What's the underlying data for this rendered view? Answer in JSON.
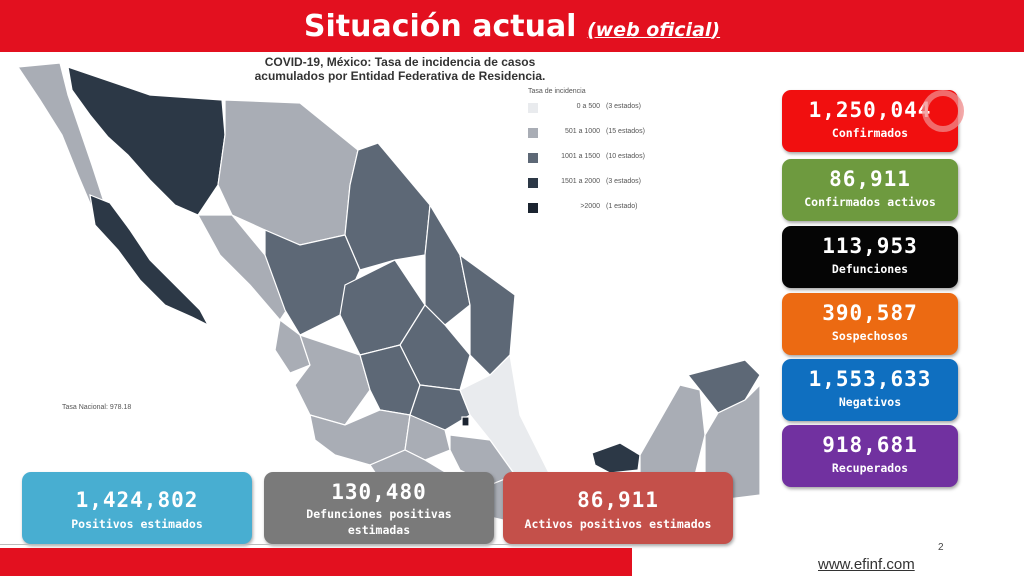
{
  "header": {
    "title": "Situación actual",
    "subtitle": "web oficial",
    "open_paren": "(",
    "close_paren": ")"
  },
  "map": {
    "title_line1": "COVID-19, México: Tasa de incidencia de casos",
    "title_line2": "acumulados por Entidad Federativa de Residencia.",
    "legend_title": "Tasa de incidencia",
    "legend": [
      {
        "range": "0 a 500",
        "count": "(3 estados)",
        "color": "#e9ebee"
      },
      {
        "range": "501 a 1000",
        "count": "(15 estados)",
        "color": "#a9adb5"
      },
      {
        "range": "1001 a 1500",
        "count": "(10 estados)",
        "color": "#5d6876"
      },
      {
        "range": "1501 a 2000",
        "count": "(3 estados)",
        "color": "#2c3846"
      },
      {
        "range": ">2000",
        "count": "(1 estado)",
        "color": "#1b2430"
      }
    ],
    "national_rate": "Tasa Nacional: 978.18"
  },
  "stats": [
    {
      "value": "1,250,044",
      "label": "Confirmados",
      "color": "#f10f0f"
    },
    {
      "value": "86,911",
      "label": "Confirmados activos",
      "color": "#6e9a3f"
    },
    {
      "value": "113,953",
      "label": "Defunciones",
      "color": "#050505"
    },
    {
      "value": "390,587",
      "label": "Sospechosos",
      "color": "#ec6a12"
    },
    {
      "value": "1,553,633",
      "label": "Negativos",
      "color": "#0f6fc0"
    },
    {
      "value": "918,681",
      "label": "Recuperados",
      "color": "#7131a0"
    }
  ],
  "estimates": [
    {
      "value": "1,424,802",
      "label": "Positivos estimados",
      "color": "#48aed1"
    },
    {
      "value": "130,480",
      "label_line1": "Defunciones positivas",
      "label_line2": "estimadas",
      "color": "#7a7a7a"
    },
    {
      "value": "86,911",
      "label": "Activos positivos estimados",
      "color": "#c4504a"
    }
  ],
  "footer": {
    "page": "2",
    "link": "www.efinf.com"
  }
}
